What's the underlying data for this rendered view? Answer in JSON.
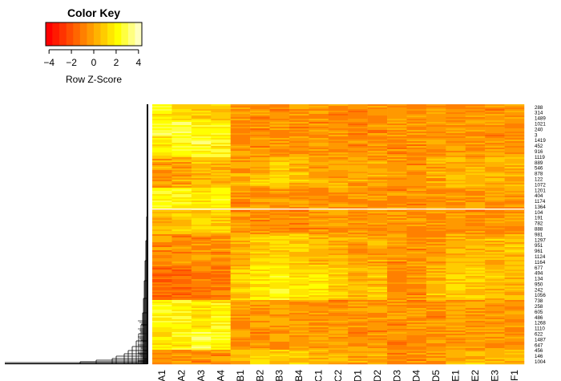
{
  "chart_data": {
    "type": "heatmap",
    "columns": [
      "A1",
      "A2",
      "A3",
      "A4",
      "B1",
      "B2",
      "B3",
      "B4",
      "C1",
      "C2",
      "D1",
      "D2",
      "D3",
      "D4",
      "D5",
      "E1",
      "E2",
      "E3",
      "F1"
    ],
    "row_labels": [
      "288",
      "314",
      "1489",
      "1021",
      "240",
      "3",
      "1419",
      "452",
      "916",
      "1119",
      "889",
      "546",
      "878",
      "122",
      "1072",
      "1201",
      "404",
      "1174",
      "1364",
      "104",
      "191",
      "782",
      "888",
      "981",
      "1297",
      "951",
      "961",
      "1124",
      "1164",
      "677",
      "494",
      "134",
      "950",
      "242",
      "1056",
      "738",
      "258",
      "605",
      "486",
      "1268",
      "1110",
      "622",
      "1487",
      "647",
      "456",
      "146",
      "1004"
    ],
    "color_key": {
      "title": "Color Key",
      "xlabel": "Row Z-Score",
      "ticks": [
        -4,
        -2,
        0,
        2,
        4
      ],
      "range": [
        -4.3,
        4.3
      ],
      "colors": [
        "#ff0000",
        "#ff1a00",
        "#ff3300",
        "#ff4d00",
        "#ff6600",
        "#ff8000",
        "#ff9900",
        "#ffb300",
        "#ffcc00",
        "#ffe600",
        "#ffff00",
        "#ffff40",
        "#ffff80",
        "#ffffbf"
      ]
    },
    "row_dendrogram": true,
    "column_dendrogram": false,
    "row_zscore_profile": [
      [
        2.0,
        1.5,
        1.0,
        0.5,
        -0.5,
        -0.5,
        -0.5,
        -0.5,
        -0.5,
        -0.5,
        -0.5,
        -0.5,
        -0.5,
        -0.5,
        -0.5,
        -0.5,
        -0.5,
        -0.5,
        -0.5
      ],
      [
        2.0,
        2.0,
        1.5,
        2.0,
        -0.5,
        -0.3,
        -0.3,
        -0.3,
        -0.5,
        -0.5,
        -0.5,
        -0.5,
        -0.5,
        -0.5,
        -0.5,
        -0.3,
        -0.3,
        -0.3,
        -0.3
      ],
      [
        0.5,
        1.0,
        1.0,
        1.0,
        -0.5,
        -0.5,
        -0.5,
        -0.5,
        -0.5,
        -0.3,
        -0.5,
        -0.5,
        -0.5,
        -0.5,
        -0.5,
        -0.5,
        -0.5,
        -0.5,
        -0.3
      ],
      [
        -0.5,
        -0.5,
        -0.5,
        -0.5,
        0.5,
        1.0,
        1.0,
        1.0,
        0.5,
        0.5,
        0.0,
        0.0,
        -0.5,
        -0.5,
        -0.3,
        0.5,
        0.5,
        0.5,
        0.5
      ],
      [
        1.5,
        2.0,
        2.5,
        2.0,
        -0.5,
        -0.5,
        -0.3,
        -0.3,
        -0.3,
        -0.3,
        -0.5,
        -0.5,
        -0.5,
        -0.5,
        -0.3,
        -0.3,
        -0.3,
        -0.3,
        -0.3
      ],
      [
        -1.5,
        -1.5,
        -1.0,
        -1.0,
        1.0,
        1.5,
        2.0,
        1.5,
        1.5,
        1.0,
        0.5,
        0.5,
        -0.5,
        -0.5,
        0.5,
        1.0,
        1.0,
        0.5,
        0.5
      ],
      [
        2.5,
        2.5,
        2.0,
        2.0,
        -0.5,
        -0.5,
        -0.5,
        -0.5,
        -0.5,
        -0.5,
        -0.5,
        -0.5,
        -0.5,
        -0.5,
        -0.5,
        -0.5,
        -0.5,
        -0.5,
        -0.5
      ],
      [
        0.0,
        0.0,
        0.5,
        0.5,
        0.0,
        0.5,
        1.0,
        0.5,
        0.0,
        0.0,
        0.0,
        0.0,
        -0.5,
        -0.5,
        0.0,
        0.5,
        0.5,
        0.5,
        0.5
      ]
    ]
  }
}
